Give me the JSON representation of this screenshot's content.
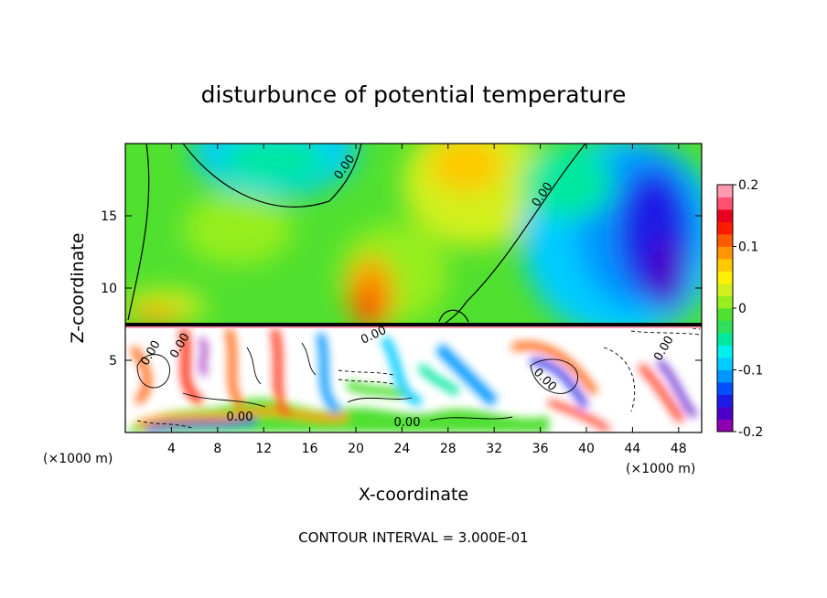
{
  "chart_data": {
    "type": "heatmap",
    "title": "disturbunce of potential temperature",
    "xlabel": "X-coordinate",
    "ylabel": "Z-coordinate",
    "x_unit_left": "(×1000 m)",
    "x_unit_right": "(×1000 m)",
    "xlim": [
      0,
      50
    ],
    "ylim": [
      0,
      20
    ],
    "x_ticks": [
      4,
      8,
      12,
      16,
      20,
      24,
      28,
      32,
      36,
      40,
      44,
      48
    ],
    "y_ticks": [
      5,
      10,
      15
    ],
    "footer": "CONTOUR INTERVAL = 3.000E-01",
    "colorbar": {
      "range": [
        -0.2,
        0.2
      ],
      "tick_labels": [
        "0.2",
        "0.1",
        "0",
        "-0.1",
        "-0.2"
      ],
      "tick_values": [
        0.2,
        0.1,
        0,
        -0.1,
        -0.2
      ],
      "colors": [
        "#8e00b0",
        "#4b00c8",
        "#1c1ce6",
        "#0050ff",
        "#0096ff",
        "#00ccff",
        "#00f0ee",
        "#00e8a0",
        "#2ee05a",
        "#50e030",
        "#96ee1e",
        "#d2f01e",
        "#fff000",
        "#ffc800",
        "#ff9600",
        "#ff5a00",
        "#ff1a00",
        "#e8001e",
        "#ff5070",
        "#ff9ab0"
      ]
    },
    "contour_labels": [
      "0.00",
      "0.00",
      "0.00",
      "0.00",
      "0.00",
      "0.00",
      "0.00",
      "0.00",
      "0.00"
    ]
  }
}
